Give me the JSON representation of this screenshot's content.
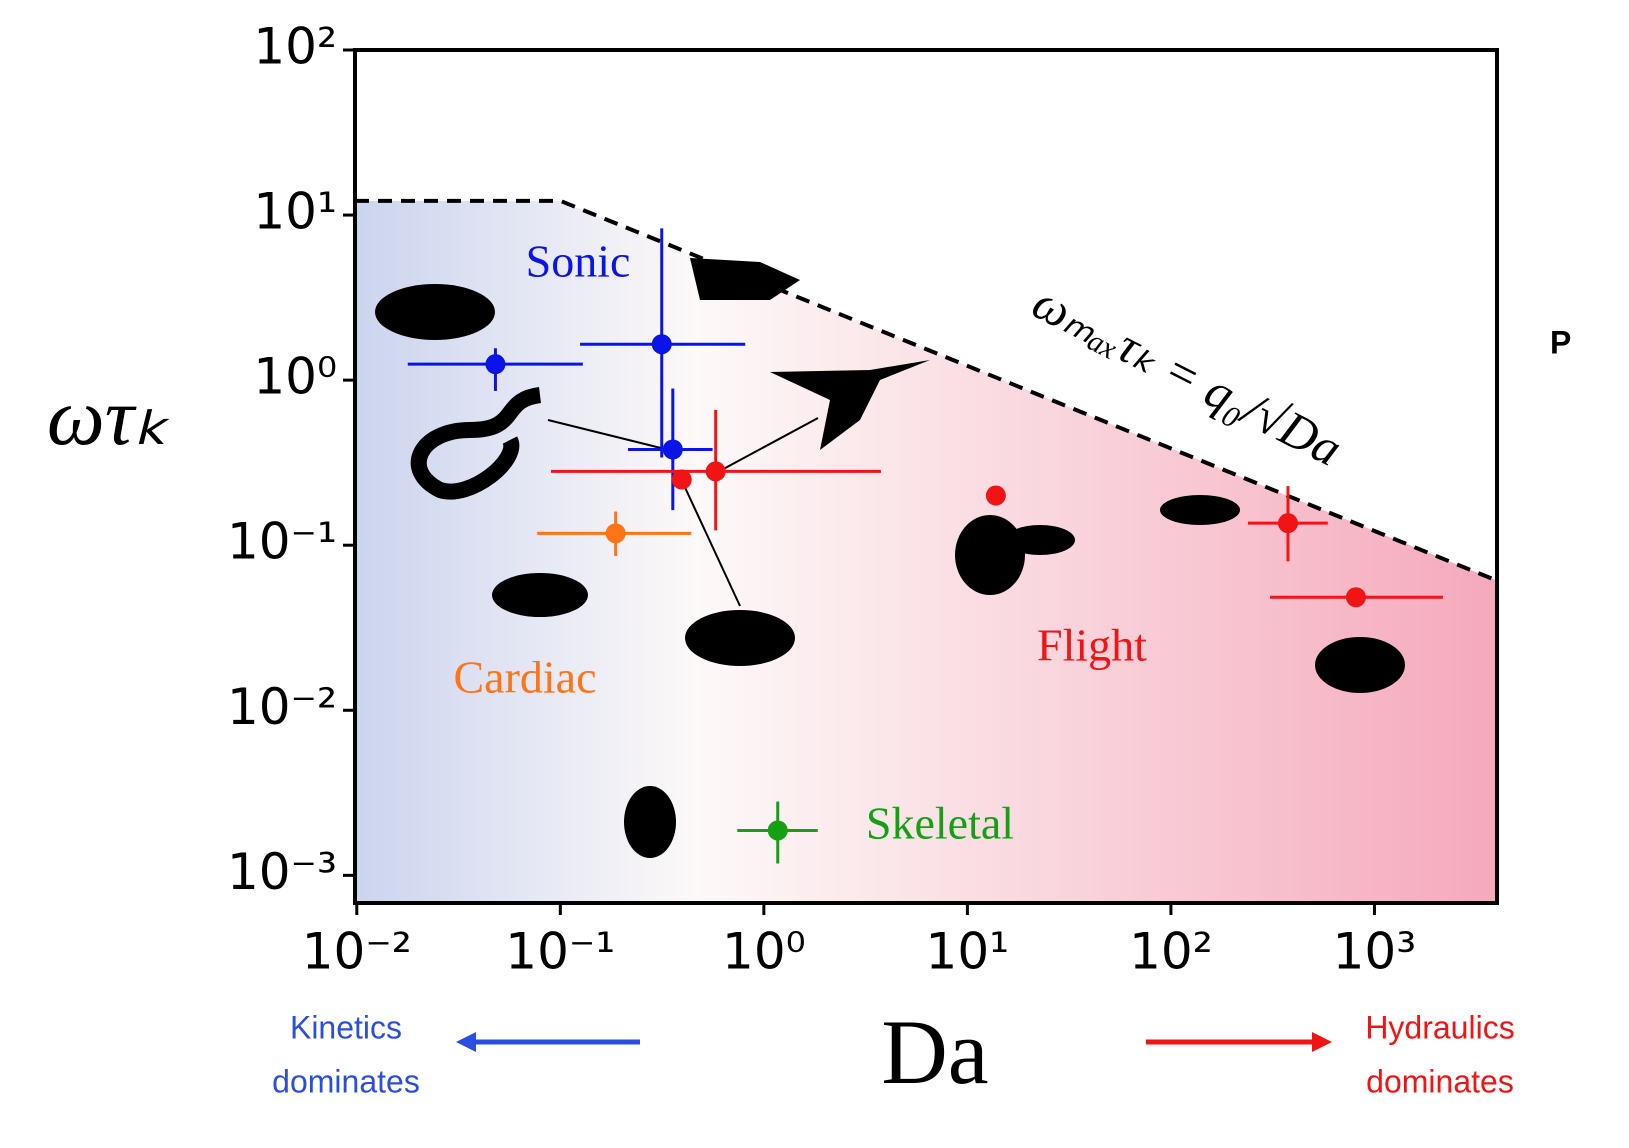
{
  "chart_data": {
    "type": "scatter",
    "x_label": "Da",
    "y_label": "ωτₖ",
    "x_log": true,
    "y_log": true,
    "xlim": [
      0.0098,
      4000
    ],
    "ylim": [
      0.00068,
      100
    ],
    "xticks": [
      {
        "value": 0.01,
        "label": "10⁻²"
      },
      {
        "value": 0.1,
        "label": "10⁻¹"
      },
      {
        "value": 1,
        "label": "10⁰"
      },
      {
        "value": 10,
        "label": "10¹"
      },
      {
        "value": 100,
        "label": "10²"
      },
      {
        "value": 1000,
        "label": "10³"
      }
    ],
    "yticks": [
      {
        "value": 0.001,
        "label": "10⁻³"
      },
      {
        "value": 0.01,
        "label": "10⁻²"
      },
      {
        "value": 0.1,
        "label": "10⁻¹"
      },
      {
        "value": 1,
        "label": "10⁰"
      },
      {
        "value": 10,
        "label": "10¹"
      },
      {
        "value": 100,
        "label": "10²"
      }
    ],
    "region_colors": [
      "#cbd4ef",
      "#fdf9f8",
      "#f5a9bc"
    ],
    "bound": {
      "label": "ωₘₐₓτₖ = q₀/√Da",
      "color": "#000000",
      "x": [
        0.0098,
        0.1,
        4000
      ],
      "values": [
        12.2,
        12.2,
        0.061
      ]
    },
    "series": [
      {
        "name": "Sonic",
        "color": "#0a14e6",
        "x": [
          0.048,
          0.315,
          0.357
        ],
        "values": [
          1.25,
          1.65,
          0.38
        ],
        "x_lower": [
          0.0178,
          0.125,
          0.215
        ],
        "x_upper": [
          0.129,
          0.81,
          0.56
        ],
        "y_lower": [
          0.86,
          0.34,
          0.163
        ],
        "y_upper": [
          1.56,
          8.3,
          0.89
        ]
      },
      {
        "name": "Flight",
        "color": "#f01414",
        "x": [
          0.58,
          0.395,
          13.8,
          376,
          811
        ],
        "values": [
          0.28,
          0.25,
          0.2,
          0.136,
          0.0484
        ],
        "x_lower": [
          0.09,
          null,
          null,
          239,
          307
        ],
        "x_upper": [
          3.76,
          null,
          null,
          590,
          2170
        ],
        "y_lower": [
          0.123,
          null,
          null,
          0.08,
          null
        ],
        "y_upper": [
          0.66,
          null,
          null,
          0.228,
          null
        ]
      },
      {
        "name": "Cardiac",
        "color": "#ff7414",
        "x": [
          0.187
        ],
        "values": [
          0.118
        ],
        "x_lower": [
          0.077
        ],
        "x_upper": [
          0.44
        ],
        "y_lower": [
          0.086
        ],
        "y_upper": [
          0.16
        ]
      },
      {
        "name": "Skeletal",
        "color": "#14a014",
        "x": [
          1.17
        ],
        "values": [
          0.00187
        ],
        "x_lower": [
          0.74
        ],
        "x_upper": [
          1.84
        ],
        "y_lower": [
          0.00118
        ],
        "y_upper": [
          0.0028
        ]
      }
    ],
    "left_note": {
      "lines": [
        "Kinetics",
        "dominates"
      ],
      "color": "#2a4fe0"
    },
    "right_note": {
      "lines": [
        "Hydraulics",
        "dominates"
      ],
      "color": "#f01414"
    },
    "side_text": "P"
  }
}
